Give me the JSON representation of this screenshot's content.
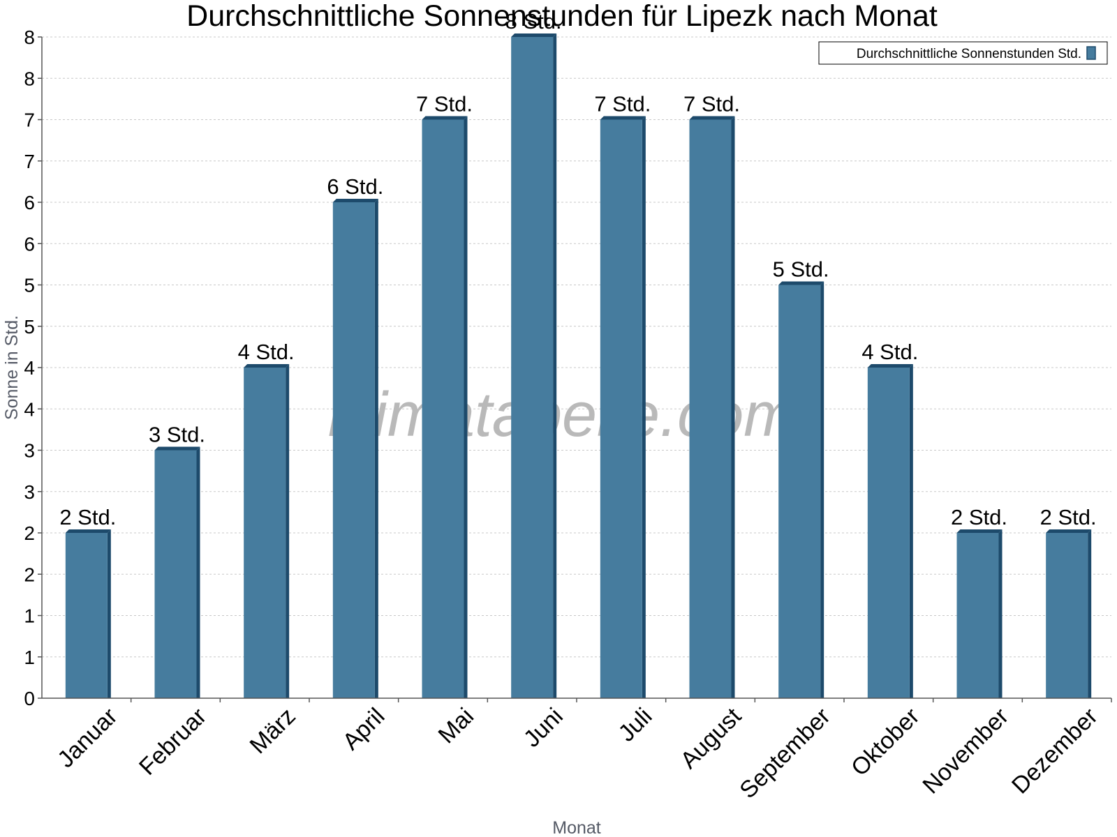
{
  "chart_data": {
    "type": "bar",
    "title": "Durchschnittliche Sonnenstunden für Lipezk nach Monat",
    "xlabel": "Monat",
    "ylabel": "Sonne in Std.",
    "categories": [
      "Januar",
      "Februar",
      "März",
      "April",
      "Mai",
      "Juni",
      "Juli",
      "August",
      "September",
      "Oktober",
      "November",
      "Dezember"
    ],
    "series": [
      {
        "name": "Durchschnittliche Sonnenstunden Std.",
        "values": [
          2,
          3,
          4,
          6,
          7,
          8,
          7,
          7,
          5,
          4,
          2,
          2
        ],
        "labels": [
          "2 Std.",
          "3 Std.",
          "4 Std.",
          "6 Std.",
          "7 Std.",
          "8 Std.",
          "7 Std.",
          "7 Std.",
          "5 Std.",
          "4 Std.",
          "2 Std.",
          "2 Std."
        ],
        "color": "#467c9e",
        "edge_color": "#1d4a6b"
      }
    ],
    "ylim": [
      0,
      8
    ],
    "y_ticks": [
      0,
      0.5,
      1,
      1.5,
      2,
      2.5,
      3,
      3.5,
      4,
      4.5,
      5,
      5.5,
      6,
      6.5,
      7,
      7.5,
      8
    ],
    "y_tick_labels": [
      "0",
      "1",
      "1",
      "2",
      "2",
      "3",
      "3",
      "4",
      "4",
      "5",
      "5",
      "6",
      "6",
      "7",
      "7",
      "8",
      "8"
    ],
    "grid": true,
    "legend": "top-right",
    "watermark": "klimatabelle.com"
  }
}
